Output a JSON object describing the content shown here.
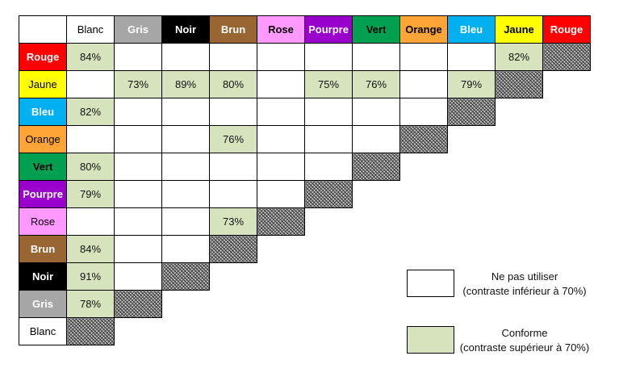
{
  "colors": [
    {
      "name": "Blanc",
      "bg": "#ffffff",
      "fg": "#000000"
    },
    {
      "name": "Gris",
      "bg": "#a6a6a6",
      "fg": "#ffffff"
    },
    {
      "name": "Noir",
      "bg": "#000000",
      "fg": "#ffffff"
    },
    {
      "name": "Brun",
      "bg": "#996633",
      "fg": "#ffffff"
    },
    {
      "name": "Rose",
      "bg": "#ff99ff",
      "fg": "#000000"
    },
    {
      "name": "Pourpre",
      "bg": "#9900cc",
      "fg": "#ffffff"
    },
    {
      "name": "Vert",
      "bg": "#00a050",
      "fg": "#000000"
    },
    {
      "name": "Orange",
      "bg": "#ffa537",
      "fg": "#000000"
    },
    {
      "name": "Bleu",
      "bg": "#00b0f0",
      "fg": "#ffffff"
    },
    {
      "name": "Jaune",
      "bg": "#ffff00",
      "fg": "#000000"
    },
    {
      "name": "Rouge",
      "bg": "#ff0000",
      "fg": "#ffffff"
    }
  ],
  "rows": [
    {
      "color": "Rouge",
      "cells": [
        "84%",
        "",
        "",
        "",
        "",
        "",
        "",
        "",
        "",
        "82%"
      ]
    },
    {
      "color": "Jaune",
      "cells": [
        "",
        "73%",
        "89%",
        "80%",
        "",
        "75%",
        "76%",
        "",
        "79%"
      ]
    },
    {
      "color": "Bleu",
      "cells": [
        "82%",
        "",
        "",
        "",
        "",
        "",
        "",
        ""
      ]
    },
    {
      "color": "Orange",
      "cells": [
        "",
        "",
        "",
        "76%",
        "",
        "",
        ""
      ]
    },
    {
      "color": "Vert",
      "cells": [
        "80%",
        "",
        "",
        "",
        "",
        ""
      ]
    },
    {
      "color": "Pourpre",
      "cells": [
        "79%",
        "",
        "",
        "",
        ""
      ]
    },
    {
      "color": "Rose",
      "cells": [
        "",
        "",
        "",
        "73%"
      ]
    },
    {
      "color": "Brun",
      "cells": [
        "84%",
        "",
        ""
      ]
    },
    {
      "color": "Noir",
      "cells": [
        "91%",
        ""
      ]
    },
    {
      "color": "Gris",
      "cells": [
        "78%"
      ]
    },
    {
      "color": "Blanc",
      "cells": []
    }
  ],
  "legend": {
    "fail": {
      "title": "Ne pas utiliser",
      "desc": "(contraste inférieur à 70%)"
    },
    "pass": {
      "title": "Conforme",
      "desc": "(contraste supérieur à 70%)"
    }
  }
}
